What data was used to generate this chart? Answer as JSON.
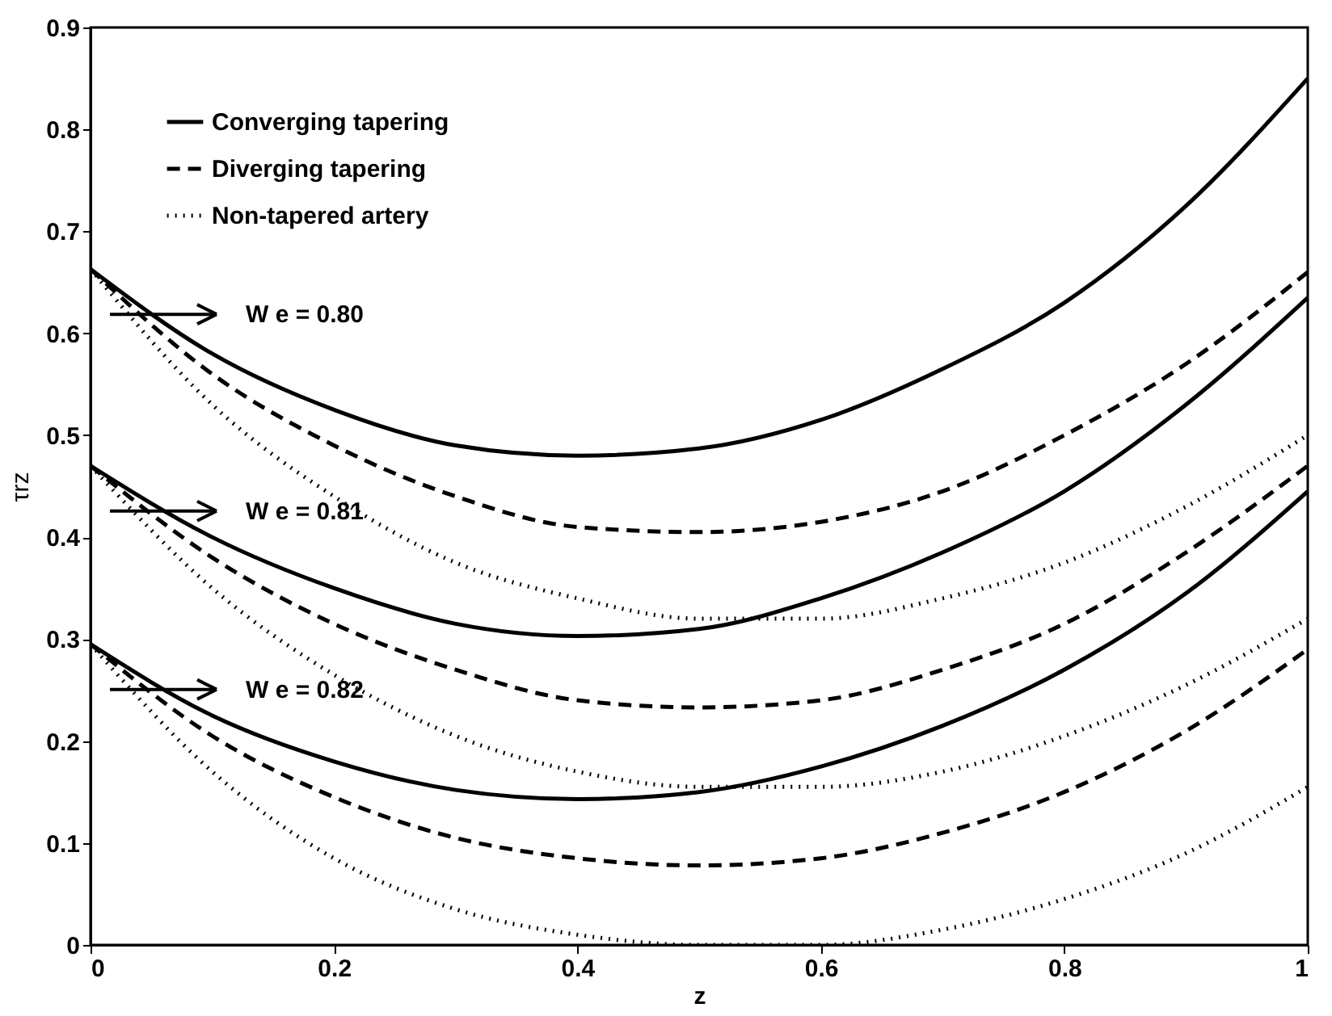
{
  "chart_data": {
    "type": "line",
    "xlabel": "z",
    "ylabel": "τrz",
    "xlim": [
      0,
      1
    ],
    "ylim": [
      0,
      0.9
    ],
    "xticks": [
      0,
      0.2,
      0.4,
      0.6,
      0.8,
      1
    ],
    "yticks": [
      0,
      0.1,
      0.2,
      0.3,
      0.4,
      0.5,
      0.6,
      0.7,
      0.8,
      0.9
    ],
    "grid": false,
    "legend": "top left",
    "marker": "none",
    "x": [
      0,
      0.1,
      0.2,
      0.3,
      0.4,
      0.5,
      0.6,
      0.7,
      0.8,
      0.9,
      1
    ],
    "series": [
      {
        "name": "Converging tapering",
        "color": "#000000",
        "line_style": "solid",
        "values": [
          0.663,
          0.58,
          0.525,
          0.49,
          0.48,
          0.487,
          0.515,
          0.565,
          0.63,
          0.725,
          0.85
        ]
      },
      {
        "name": "Diverging tapering",
        "color": "#000000",
        "line_style": "dashed",
        "values": [
          0.663,
          0.56,
          0.49,
          0.44,
          0.41,
          0.405,
          0.415,
          0.445,
          0.5,
          0.57,
          0.66
        ]
      },
      {
        "name": "Non-tapered artery",
        "color": "#000000",
        "line_style": "dotted",
        "values": [
          0.663,
          0.53,
          0.44,
          0.375,
          0.34,
          0.32,
          0.32,
          0.34,
          0.375,
          0.43,
          0.5
        ]
      },
      {
        "color": "#000000",
        "line_style": "solid",
        "values": [
          0.47,
          0.4,
          0.35,
          0.315,
          0.303,
          0.31,
          0.34,
          0.385,
          0.445,
          0.53,
          0.635
        ]
      },
      {
        "color": "#000000",
        "line_style": "dashed",
        "values": [
          0.47,
          0.38,
          0.315,
          0.27,
          0.24,
          0.233,
          0.24,
          0.27,
          0.315,
          0.385,
          0.47
        ]
      },
      {
        "color": "#000000",
        "line_style": "dotted",
        "values": [
          0.47,
          0.35,
          0.265,
          0.205,
          0.17,
          0.155,
          0.155,
          0.17,
          0.205,
          0.255,
          0.32
        ]
      },
      {
        "color": "#000000",
        "line_style": "solid",
        "values": [
          0.295,
          0.225,
          0.18,
          0.152,
          0.143,
          0.15,
          0.175,
          0.215,
          0.27,
          0.345,
          0.445
        ]
      },
      {
        "color": "#000000",
        "line_style": "dashed",
        "values": [
          0.295,
          0.205,
          0.145,
          0.105,
          0.085,
          0.078,
          0.085,
          0.11,
          0.15,
          0.21,
          0.29
        ]
      },
      {
        "color": "#000000",
        "line_style": "dotted",
        "values": [
          0.295,
          0.17,
          0.085,
          0.035,
          0.01,
          0.0,
          0.0,
          0.015,
          0.045,
          0.09,
          0.155
        ]
      }
    ],
    "annotations": [
      "W e = 0.80",
      "W e = 0.81",
      "W e = 0.82"
    ]
  }
}
